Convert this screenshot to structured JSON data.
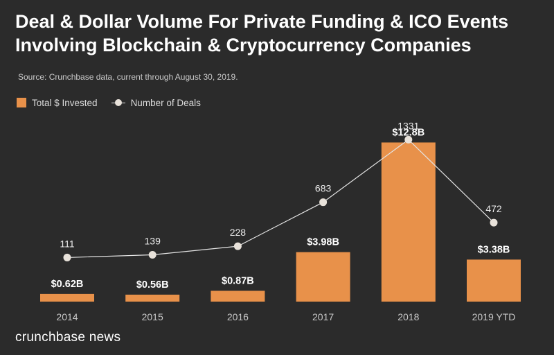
{
  "header": {
    "title_line1": "Deal & Dollar Volume For Private Funding & ICO Events",
    "title_line2": "Involving Blockchain & Cryptocurrency Companies",
    "source": "Source: Crunchbase data, current through August 30, 2019."
  },
  "legend": {
    "bar_label": "Total $ Invested",
    "line_label": "Number of Deals"
  },
  "brand": {
    "name": "crunchbase news"
  },
  "colors": {
    "background": "#2b2b2b",
    "bar": "#e8914a",
    "line": "#e4e4e4",
    "marker": "#e8e2da",
    "text": "#ffffff",
    "axis_text": "#c9c9c9"
  },
  "chart_data": {
    "type": "bar",
    "title": "Deal & Dollar Volume For Private Funding & ICO Events Involving Blockchain & Cryptocurrency Companies",
    "categories": [
      "2014",
      "2015",
      "2016",
      "2017",
      "2018",
      "2019 YTD"
    ],
    "series": [
      {
        "name": "Total $ Invested",
        "type": "bar",
        "unit": "billion USD",
        "values": [
          0.62,
          0.56,
          0.87,
          3.98,
          12.8,
          3.38
        ],
        "labels": [
          "$0.62B",
          "$0.56B",
          "$0.87B",
          "$3.98B",
          "$12.8B",
          "$3.38B"
        ]
      },
      {
        "name": "Number of Deals",
        "type": "line",
        "values": [
          111,
          139,
          228,
          683,
          1331,
          472
        ],
        "labels": [
          "111",
          "139",
          "228",
          "683",
          "1331",
          "472"
        ]
      }
    ],
    "bar_ylim": [
      0,
      14.5
    ],
    "line_ylim": [
      -345,
      1520
    ],
    "xlabel": "",
    "ylabel": "",
    "grid": false,
    "legend_position": "top-left"
  }
}
